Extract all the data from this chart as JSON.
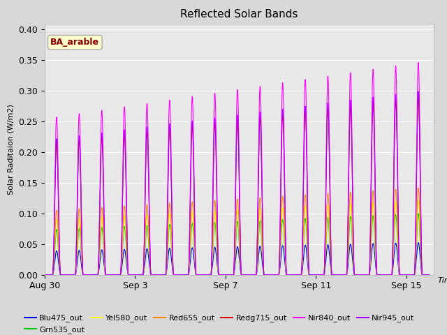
{
  "title": "Reflected Solar Bands",
  "xlabel": "Time",
  "ylabel": "Solar Raditaion (W/m2)",
  "annotation": "BA_arable",
  "annotation_color": "#8B0000",
  "annotation_bg": "#ffffcc",
  "ylim": [
    0,
    0.41
  ],
  "yticks": [
    0.0,
    0.05,
    0.1,
    0.15,
    0.2,
    0.25,
    0.3,
    0.35,
    0.4
  ],
  "fig_bg": "#d8d8d8",
  "plot_bg": "#e8e8e8",
  "series": [
    {
      "name": "Blu475_out",
      "color": "#0000ff",
      "scale": 0.05
    },
    {
      "name": "Grn535_out",
      "color": "#00cc00",
      "scale": 0.095
    },
    {
      "name": "Yel580_out",
      "color": "#ffff00",
      "scale": 0.115
    },
    {
      "name": "Red655_out",
      "color": "#ff8800",
      "scale": 0.135
    },
    {
      "name": "Redg715_out",
      "color": "#dd0000",
      "scale": 0.275
    },
    {
      "name": "Nir840_out",
      "color": "#ff00ff",
      "scale": 0.33
    },
    {
      "name": "Nir945_out",
      "color": "#aa00ff",
      "scale": 0.285
    }
  ],
  "xtick_labels": [
    "Aug 30",
    "Sep 3",
    "Sep 7",
    "Sep 11",
    "Sep 15"
  ],
  "xtick_days": [
    0,
    4,
    8,
    12,
    16
  ],
  "num_days": 17,
  "samples_per_day": 144,
  "day_start": 0.35,
  "day_end": 0.7,
  "peak_min": 0.78,
  "peak_max": 1.05,
  "peak_shape_exp": 2.0,
  "xlim": [
    0,
    17.2
  ]
}
